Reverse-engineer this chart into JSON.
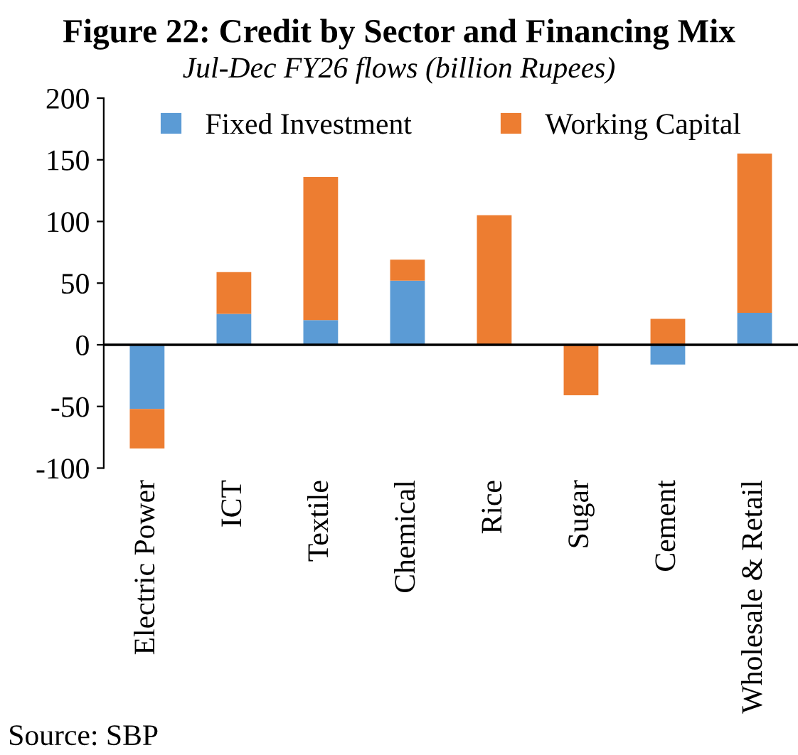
{
  "chart_data": {
    "type": "bar",
    "stacked": true,
    "title": "Figure 22: Credit by Sector and Financing Mix",
    "subtitle": "Jul-Dec FY26 flows (billion Rupees)",
    "categories": [
      "Electric Power",
      "ICT",
      "Textile",
      "Chemical",
      "Rice",
      "Sugar",
      "Cement",
      "Wholesale & Retail"
    ],
    "series": [
      {
        "name": "Fixed Investment",
        "color": "#5b9bd5",
        "values": [
          -52,
          25,
          20,
          52,
          0,
          null,
          -16,
          26
        ]
      },
      {
        "name": "Working Capital",
        "color": "#ed7d31",
        "values": [
          -32,
          34,
          116,
          17,
          105,
          -41,
          21,
          129
        ]
      }
    ],
    "ylim": [
      -100,
      200
    ],
    "yticks": [
      -100,
      -50,
      0,
      50,
      100,
      150,
      200
    ],
    "grid": false,
    "legend": "top",
    "ref_lines": [
      {
        "axis": "y",
        "value": 0,
        "color": "#000000"
      }
    ],
    "annotations": [
      "Source: SBP"
    ]
  }
}
